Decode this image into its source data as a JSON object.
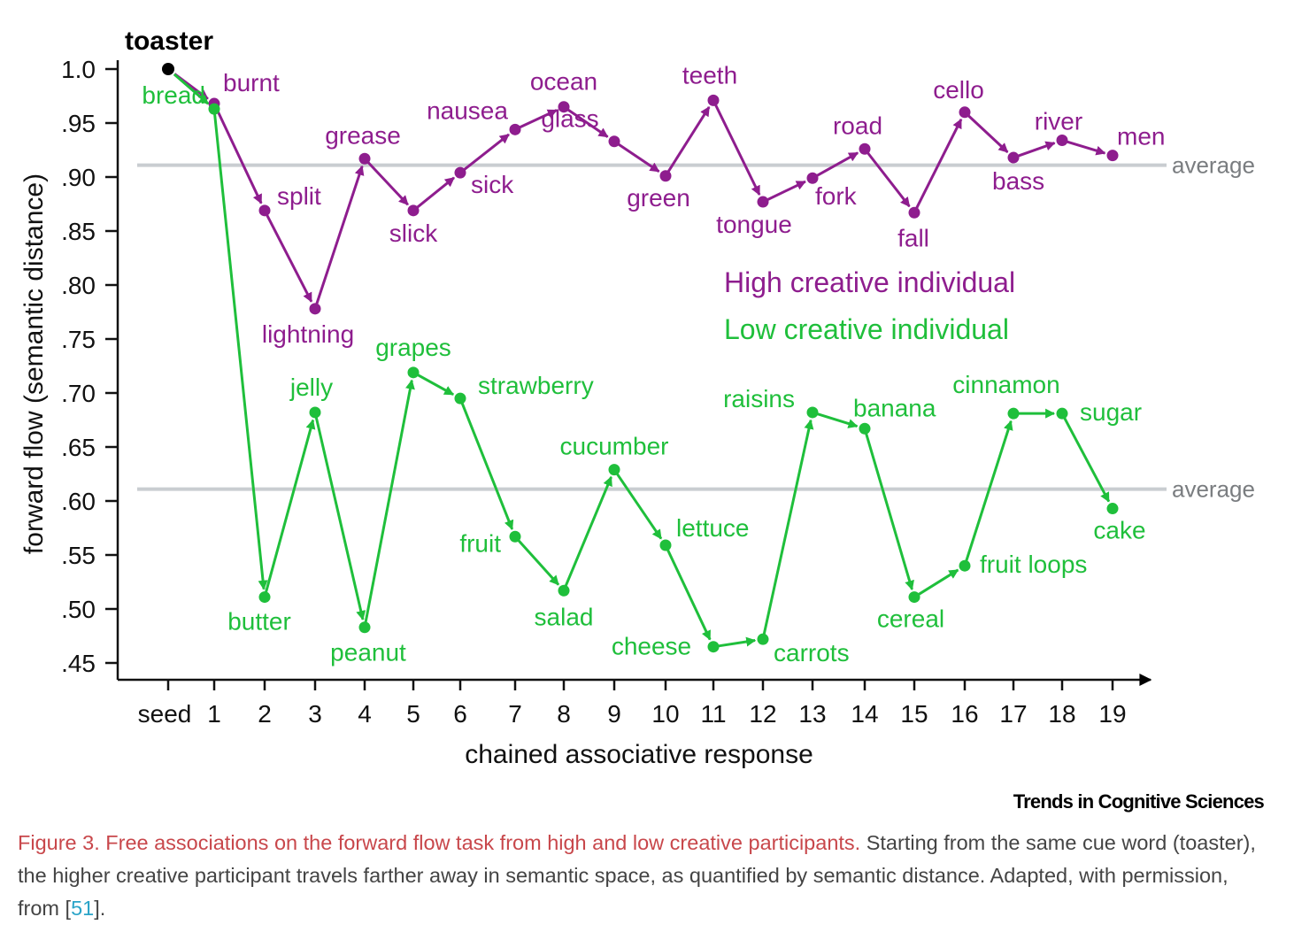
{
  "chart_data": {
    "type": "line",
    "seed_word": "toaster",
    "xlabel": "chained associative response",
    "ylabel": "forward flow (semantic distance)",
    "ylim": [
      0.45,
      1.0
    ],
    "categories": [
      "seed",
      "1",
      "2",
      "3",
      "4",
      "5",
      "6",
      "7",
      "8",
      "9",
      "10",
      "11",
      "12",
      "13",
      "14",
      "15",
      "16",
      "17",
      "18",
      "19"
    ],
    "yticks": [
      {
        "value": 1.0,
        "label": "1.0"
      },
      {
        "value": 0.95,
        "label": ".95"
      },
      {
        "value": 0.9,
        "label": ".90"
      },
      {
        "value": 0.85,
        "label": ".85"
      },
      {
        "value": 0.8,
        "label": ".80"
      },
      {
        "value": 0.75,
        "label": ".75"
      },
      {
        "value": 0.7,
        "label": ".70"
      },
      {
        "value": 0.65,
        "label": ".65"
      },
      {
        "value": 0.6,
        "label": ".60"
      },
      {
        "value": 0.55,
        "label": ".55"
      },
      {
        "value": 0.5,
        "label": ".50"
      },
      {
        "value": 0.45,
        "label": ".45"
      }
    ],
    "series": [
      {
        "name": "High creative individual",
        "color": "#8e1d8e",
        "average_value": 0.911,
        "average_label": "average",
        "points": [
          {
            "x": "seed",
            "word": "toaster",
            "y": 1.0
          },
          {
            "x": "1",
            "word": "burnt",
            "y": 0.968
          },
          {
            "x": "2",
            "word": "split",
            "y": 0.869
          },
          {
            "x": "3",
            "word": "lightning",
            "y": 0.778
          },
          {
            "x": "4",
            "word": "grease",
            "y": 0.917
          },
          {
            "x": "5",
            "word": "slick",
            "y": 0.869
          },
          {
            "x": "6",
            "word": "sick",
            "y": 0.904
          },
          {
            "x": "7",
            "word": "nausea",
            "y": 0.944
          },
          {
            "x": "8",
            "word": "ocean",
            "y": 0.965
          },
          {
            "x": "9",
            "word": "glass",
            "y": 0.933
          },
          {
            "x": "10",
            "word": "green",
            "y": 0.901
          },
          {
            "x": "11",
            "word": "teeth",
            "y": 0.971
          },
          {
            "x": "12",
            "word": "tongue",
            "y": 0.877
          },
          {
            "x": "13",
            "word": "fork",
            "y": 0.899
          },
          {
            "x": "14",
            "word": "road",
            "y": 0.926
          },
          {
            "x": "15",
            "word": "fall",
            "y": 0.867
          },
          {
            "x": "16",
            "word": "cello",
            "y": 0.96
          },
          {
            "x": "17",
            "word": "bass",
            "y": 0.918
          },
          {
            "x": "18",
            "word": "river",
            "y": 0.934
          },
          {
            "x": "19",
            "word": "men",
            "y": 0.92
          }
        ]
      },
      {
        "name": "Low creative individual",
        "color": "#1fbf3b",
        "average_value": 0.611,
        "average_label": "average",
        "points": [
          {
            "x": "seed",
            "word": "toaster",
            "y": 1.0
          },
          {
            "x": "1",
            "word": "bread",
            "y": 0.963
          },
          {
            "x": "2",
            "word": "butter",
            "y": 0.511
          },
          {
            "x": "3",
            "word": "jelly",
            "y": 0.682
          },
          {
            "x": "4",
            "word": "peanut",
            "y": 0.483
          },
          {
            "x": "5",
            "word": "grapes",
            "y": 0.719
          },
          {
            "x": "6",
            "word": "strawberry",
            "y": 0.695
          },
          {
            "x": "7",
            "word": "fruit",
            "y": 0.567
          },
          {
            "x": "8",
            "word": "salad",
            "y": 0.517
          },
          {
            "x": "9",
            "word": "cucumber",
            "y": 0.629
          },
          {
            "x": "10",
            "word": "lettuce",
            "y": 0.559
          },
          {
            "x": "11",
            "word": "cheese",
            "y": 0.465
          },
          {
            "x": "12",
            "word": "carrots",
            "y": 0.472
          },
          {
            "x": "13",
            "word": "raisins",
            "y": 0.682
          },
          {
            "x": "14",
            "word": "banana",
            "y": 0.667
          },
          {
            "x": "15",
            "word": "cereal",
            "y": 0.511
          },
          {
            "x": "16",
            "word": "fruit loops",
            "y": 0.54
          },
          {
            "x": "17",
            "word": "cinnamon",
            "y": 0.681
          },
          {
            "x": "18",
            "word": "sugar",
            "y": 0.681
          },
          {
            "x": "19",
            "word": "cake",
            "y": 0.593
          }
        ]
      }
    ]
  },
  "journal_name": "Trends in Cognitive Sciences",
  "caption": {
    "title": "Figure 3. Free associations on the forward flow task from high and low creative participants.",
    "body_before_ref": " Starting from the same cue word (toaster), the higher creative participant travels farther away in semantic space, as quantified by semantic distance. Adapted, with permission, from [",
    "ref": "51",
    "body_after_ref": "]."
  }
}
